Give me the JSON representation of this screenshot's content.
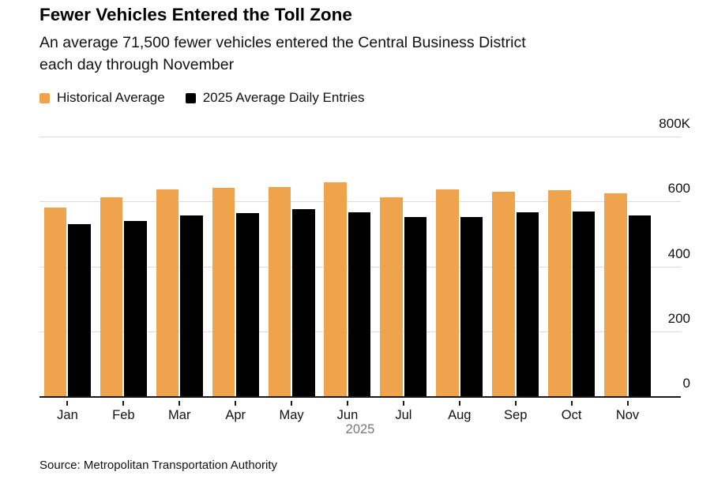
{
  "header": {
    "title": "Fewer Vehicles Entered the Toll Zone",
    "subtitle": "An average 71,500 fewer vehicles entered the Central Business District\neach day through November"
  },
  "legend": [
    {
      "label": "Historical Average",
      "color": "#EEA34C"
    },
    {
      "label": "2025 Average Daily Entries",
      "color": "#000000"
    }
  ],
  "chart_data": {
    "type": "bar",
    "title": "Fewer Vehicles Entered the Toll Zone",
    "subtitle": "An average 71,500 fewer vehicles entered the Central Business District each day through November",
    "categories": [
      "Jan",
      "Feb",
      "Mar",
      "Apr",
      "May",
      "Jun",
      "Jul",
      "Aug",
      "Sep",
      "Oct",
      "Nov"
    ],
    "series": [
      {
        "name": "Historical Average",
        "color": "#EEA34C",
        "values": [
          580,
          612,
          638,
          643,
          645,
          660,
          613,
          638,
          630,
          634,
          626
        ]
      },
      {
        "name": "2025 Average Daily Entries",
        "color": "#000000",
        "values": [
          531,
          539,
          558,
          565,
          577,
          567,
          551,
          551,
          566,
          568,
          557
        ]
      }
    ],
    "unit": "thousands of vehicles per day",
    "ylim": [
      0,
      800
    ],
    "yticks": [
      {
        "value": 800,
        "label": "800K"
      },
      {
        "value": 600,
        "label": "600"
      },
      {
        "value": 400,
        "label": "400"
      },
      {
        "value": 200,
        "label": "200"
      },
      {
        "value": 0,
        "label": "0"
      }
    ],
    "x_axis_label": "2025",
    "grid": true,
    "legend_position": "top-left",
    "y_axis_side": "right"
  },
  "footer": {
    "source": "Source: Metropolitan Transportation Authority"
  },
  "colors": {
    "background": "#ffffff",
    "gridline": "#dbdbdb",
    "axis": "#1a1a1a",
    "year_label": "#767676",
    "text": "#111111"
  }
}
